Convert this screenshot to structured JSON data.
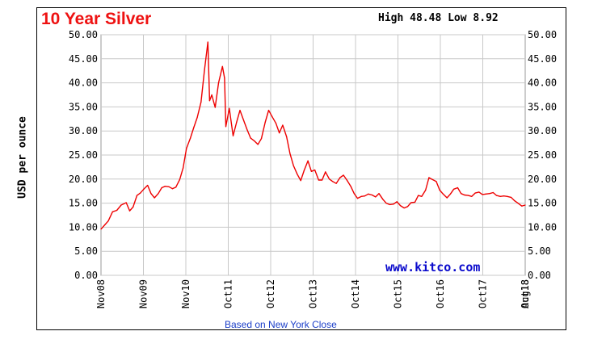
{
  "chart_data": {
    "type": "line",
    "title": "10 Year Silver",
    "high_low": {
      "high_label": "High",
      "high": "48.48",
      "low_label": "Low",
      "low": "8.92"
    },
    "ylabel": "USD per ounce",
    "ylim": [
      0,
      50
    ],
    "y_ticks": [
      "0.00",
      "5.00",
      "10.00",
      "15.00",
      "20.00",
      "25.00",
      "30.00",
      "35.00",
      "40.00",
      "45.00",
      "50.00"
    ],
    "x_ticks": [
      "Nov08",
      "Nov09",
      "Nov10",
      "Oct11",
      "Oct12",
      "Oct13",
      "Oct14",
      "Oct15",
      "Oct16",
      "Oct17",
      "Oct18",
      "Aug18"
    ],
    "watermark": "www.kitco.com",
    "footer": "Based on New York Close",
    "grid": true,
    "line_color": "#ee0000",
    "series": [
      {
        "values": [
          [
            2008.83,
            9.6
          ],
          [
            2008.92,
            10.5
          ],
          [
            2009.0,
            11.3
          ],
          [
            2009.1,
            13.2
          ],
          [
            2009.2,
            13.5
          ],
          [
            2009.3,
            14.6
          ],
          [
            2009.42,
            15.1
          ],
          [
            2009.5,
            13.4
          ],
          [
            2009.58,
            14.2
          ],
          [
            2009.67,
            16.6
          ],
          [
            2009.75,
            17.1
          ],
          [
            2009.83,
            17.9
          ],
          [
            2009.92,
            18.7
          ],
          [
            2010.0,
            17.0
          ],
          [
            2010.08,
            16.1
          ],
          [
            2010.17,
            17.0
          ],
          [
            2010.25,
            18.2
          ],
          [
            2010.33,
            18.5
          ],
          [
            2010.42,
            18.4
          ],
          [
            2010.5,
            18.0
          ],
          [
            2010.58,
            18.3
          ],
          [
            2010.67,
            19.9
          ],
          [
            2010.75,
            22.3
          ],
          [
            2010.83,
            26.4
          ],
          [
            2010.92,
            28.5
          ],
          [
            2011.0,
            30.7
          ],
          [
            2011.08,
            32.8
          ],
          [
            2011.17,
            36.0
          ],
          [
            2011.25,
            42.7
          ],
          [
            2011.33,
            48.48
          ],
          [
            2011.37,
            36.3
          ],
          [
            2011.42,
            37.5
          ],
          [
            2011.5,
            34.9
          ],
          [
            2011.58,
            40.0
          ],
          [
            2011.67,
            43.4
          ],
          [
            2011.72,
            41.0
          ],
          [
            2011.75,
            30.9
          ],
          [
            2011.83,
            34.7
          ],
          [
            2011.92,
            29.0
          ],
          [
            2012.0,
            31.8
          ],
          [
            2012.08,
            34.3
          ],
          [
            2012.17,
            32.1
          ],
          [
            2012.25,
            30.2
          ],
          [
            2012.33,
            28.5
          ],
          [
            2012.42,
            27.9
          ],
          [
            2012.5,
            27.2
          ],
          [
            2012.58,
            28.4
          ],
          [
            2012.67,
            31.8
          ],
          [
            2012.75,
            34.3
          ],
          [
            2012.83,
            33.0
          ],
          [
            2012.92,
            31.6
          ],
          [
            2013.0,
            29.6
          ],
          [
            2013.08,
            31.2
          ],
          [
            2013.17,
            28.8
          ],
          [
            2013.25,
            25.3
          ],
          [
            2013.33,
            22.8
          ],
          [
            2013.42,
            21.0
          ],
          [
            2013.5,
            19.7
          ],
          [
            2013.58,
            21.8
          ],
          [
            2013.67,
            23.8
          ],
          [
            2013.75,
            21.6
          ],
          [
            2013.83,
            21.9
          ],
          [
            2013.92,
            19.8
          ],
          [
            2014.0,
            19.8
          ],
          [
            2014.08,
            21.5
          ],
          [
            2014.17,
            20.0
          ],
          [
            2014.25,
            19.5
          ],
          [
            2014.33,
            19.1
          ],
          [
            2014.42,
            20.3
          ],
          [
            2014.5,
            20.8
          ],
          [
            2014.58,
            19.8
          ],
          [
            2014.67,
            18.5
          ],
          [
            2014.75,
            17.0
          ],
          [
            2014.83,
            16.0
          ],
          [
            2014.92,
            16.4
          ],
          [
            2015.0,
            16.5
          ],
          [
            2015.08,
            16.9
          ],
          [
            2015.17,
            16.7
          ],
          [
            2015.25,
            16.3
          ],
          [
            2015.33,
            17.0
          ],
          [
            2015.42,
            15.8
          ],
          [
            2015.5,
            15.0
          ],
          [
            2015.58,
            14.7
          ],
          [
            2015.67,
            14.8
          ],
          [
            2015.75,
            15.3
          ],
          [
            2015.83,
            14.5
          ],
          [
            2015.92,
            14.0
          ],
          [
            2016.0,
            14.3
          ],
          [
            2016.08,
            15.1
          ],
          [
            2016.17,
            15.2
          ],
          [
            2016.25,
            16.6
          ],
          [
            2016.33,
            16.4
          ],
          [
            2016.42,
            17.7
          ],
          [
            2016.5,
            20.3
          ],
          [
            2016.58,
            19.9
          ],
          [
            2016.67,
            19.5
          ],
          [
            2016.75,
            17.7
          ],
          [
            2016.83,
            16.9
          ],
          [
            2016.92,
            16.1
          ],
          [
            2017.0,
            16.9
          ],
          [
            2017.08,
            17.9
          ],
          [
            2017.17,
            18.2
          ],
          [
            2017.25,
            17.0
          ],
          [
            2017.33,
            16.7
          ],
          [
            2017.42,
            16.6
          ],
          [
            2017.5,
            16.4
          ],
          [
            2017.58,
            17.1
          ],
          [
            2017.67,
            17.3
          ],
          [
            2017.75,
            16.8
          ],
          [
            2017.83,
            16.9
          ],
          [
            2017.92,
            17.0
          ],
          [
            2018.0,
            17.2
          ],
          [
            2018.08,
            16.6
          ],
          [
            2018.17,
            16.4
          ],
          [
            2018.25,
            16.5
          ],
          [
            2018.33,
            16.4
          ],
          [
            2018.42,
            16.2
          ],
          [
            2018.5,
            15.5
          ],
          [
            2018.58,
            15.0
          ],
          [
            2018.67,
            14.4
          ],
          [
            2018.75,
            14.6
          ]
        ]
      }
    ]
  }
}
